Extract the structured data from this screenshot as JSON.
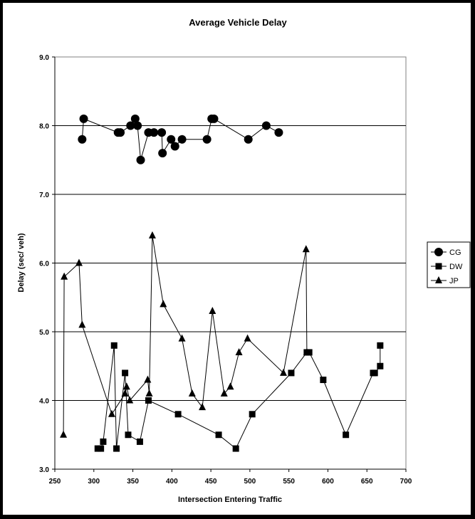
{
  "chart_data": {
    "type": "line",
    "title": "Average Vehicle Delay",
    "xlabel": "Intersection Entering Traffic",
    "ylabel": "Delay (sec/ veh)",
    "xlim": [
      250,
      700
    ],
    "ylim": [
      3.0,
      9.0
    ],
    "xticks": [
      "250",
      "300",
      "350",
      "400",
      "450",
      "500",
      "550",
      "600",
      "650",
      "700"
    ],
    "yticks": [
      "3.0",
      "4.0",
      "5.0",
      "6.0",
      "7.0",
      "8.0",
      "9.0"
    ],
    "grid": "horizontal",
    "legend_position": "right",
    "series": [
      {
        "name": "CG",
        "marker": "circle",
        "points": [
          [
            285,
            7.8
          ],
          [
            287,
            8.1
          ],
          [
            331,
            7.9
          ],
          [
            334,
            7.9
          ],
          [
            347,
            8.0
          ],
          [
            353,
            8.1
          ],
          [
            356,
            8.0
          ],
          [
            360,
            7.5
          ],
          [
            370,
            7.9
          ],
          [
            377,
            7.9
          ],
          [
            387,
            7.9
          ],
          [
            388,
            7.6
          ],
          [
            399,
            7.8
          ],
          [
            404,
            7.7
          ],
          [
            413,
            7.8
          ],
          [
            445,
            7.8
          ],
          [
            451,
            8.1
          ],
          [
            454,
            8.1
          ],
          [
            498,
            7.8
          ],
          [
            521,
            8.0
          ],
          [
            537,
            7.9
          ]
        ]
      },
      {
        "name": "DW",
        "marker": "square",
        "points": [
          [
            305,
            3.3
          ],
          [
            309,
            3.3
          ],
          [
            312,
            3.4
          ],
          [
            326,
            4.8
          ],
          [
            329,
            3.3
          ],
          [
            340,
            4.4
          ],
          [
            344,
            3.5
          ],
          [
            359,
            3.4
          ],
          [
            370,
            4.0
          ],
          [
            408,
            3.8
          ],
          [
            460,
            3.5
          ],
          [
            482,
            3.3
          ],
          [
            503,
            3.8
          ],
          [
            553,
            4.4
          ],
          [
            573,
            4.7
          ],
          [
            576,
            4.7
          ],
          [
            594,
            4.3
          ],
          [
            623,
            3.5
          ],
          [
            658,
            4.4
          ],
          [
            660,
            4.4
          ],
          [
            667,
            4.5
          ],
          [
            667,
            4.8
          ]
        ]
      },
      {
        "name": "JP",
        "marker": "triangle",
        "points": [
          [
            261,
            3.5
          ],
          [
            262,
            5.8
          ],
          [
            281,
            6.0
          ],
          [
            285,
            5.1
          ],
          [
            323,
            3.8
          ],
          [
            340,
            4.1
          ],
          [
            342,
            4.2
          ],
          [
            346,
            4.0
          ],
          [
            369,
            4.3
          ],
          [
            371,
            4.1
          ],
          [
            375,
            6.4
          ],
          [
            389,
            5.4
          ],
          [
            413,
            4.9
          ],
          [
            426,
            4.1
          ],
          [
            439,
            3.9
          ],
          [
            452,
            5.3
          ],
          [
            467,
            4.1
          ],
          [
            475,
            4.2
          ],
          [
            486,
            4.7
          ],
          [
            497,
            4.9
          ],
          [
            543,
            4.4
          ],
          [
            572,
            6.2
          ],
          [
            573,
            4.7
          ]
        ]
      }
    ]
  }
}
